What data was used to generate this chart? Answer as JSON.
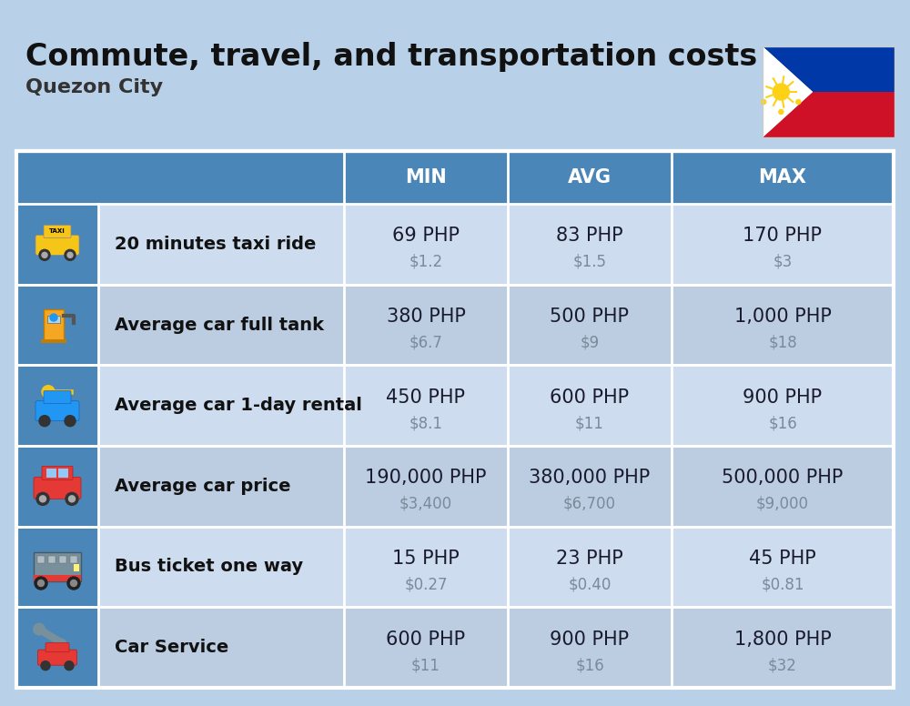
{
  "title": "Commute, travel, and transportation costs",
  "subtitle": "Quezon City",
  "background_color": "#b8d0e8",
  "header_color": "#4a86b8",
  "header_text_color": "#ffffff",
  "row_bg_even": "#ccdcee",
  "row_bg_odd": "#bccfe0",
  "cell_divider": "#ffffff",
  "col_headers": [
    "MIN",
    "AVG",
    "MAX"
  ],
  "rows": [
    {
      "label": "20 minutes taxi ride",
      "min_php": "69 PHP",
      "min_usd": "$1.2",
      "avg_php": "83 PHP",
      "avg_usd": "$1.5",
      "max_php": "170 PHP",
      "max_usd": "$3"
    },
    {
      "label": "Average car full tank",
      "min_php": "380 PHP",
      "min_usd": "$6.7",
      "avg_php": "500 PHP",
      "avg_usd": "$9",
      "max_php": "1,000 PHP",
      "max_usd": "$18"
    },
    {
      "label": "Average car 1-day rental",
      "min_php": "450 PHP",
      "min_usd": "$8.1",
      "avg_php": "600 PHP",
      "avg_usd": "$11",
      "max_php": "900 PHP",
      "max_usd": "$16"
    },
    {
      "label": "Average car price",
      "min_php": "190,000 PHP",
      "min_usd": "$3,400",
      "avg_php": "380,000 PHP",
      "avg_usd": "$6,700",
      "max_php": "500,000 PHP",
      "max_usd": "$9,000"
    },
    {
      "label": "Bus ticket one way",
      "min_php": "15 PHP",
      "min_usd": "$0.27",
      "avg_php": "23 PHP",
      "avg_usd": "$0.40",
      "max_php": "45 PHP",
      "max_usd": "$0.81"
    },
    {
      "label": "Car Service",
      "min_php": "600 PHP",
      "min_usd": "$11",
      "avg_php": "900 PHP",
      "avg_usd": "$16",
      "max_php": "1,800 PHP",
      "max_usd": "$32"
    }
  ],
  "title_fontsize": 24,
  "subtitle_fontsize": 16,
  "header_fontsize": 15,
  "label_fontsize": 14,
  "value_fontsize": 15,
  "usd_fontsize": 12,
  "flag_colors": {
    "blue": "#0038A8",
    "red": "#CE1126",
    "white": "#FFFFFF",
    "yellow": "#FCD116"
  }
}
